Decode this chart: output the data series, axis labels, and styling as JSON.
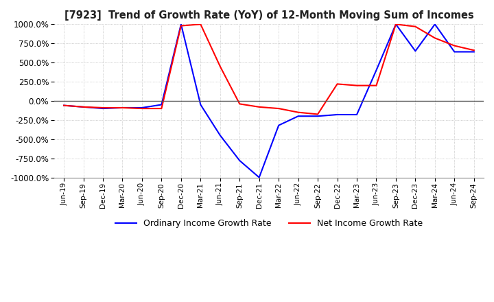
{
  "title": "[7923]  Trend of Growth Rate (YoY) of 12-Month Moving Sum of Incomes",
  "ylim": [
    -1000,
    1000
  ],
  "yticks": [
    -1000,
    -750,
    -500,
    -250,
    0,
    250,
    500,
    750,
    1000
  ],
  "ytick_labels": [
    "-1000.0%",
    "-750.0%",
    "-500.0%",
    "-250.0%",
    "0.0%",
    "250.0%",
    "500.0%",
    "750.0%",
    "1000.0%"
  ],
  "ordinary_color": "#0000FF",
  "net_color": "#FF0000",
  "background_color": "#FFFFFF",
  "grid_color": "#AAAAAA",
  "legend_labels": [
    "Ordinary Income Growth Rate",
    "Net Income Growth Rate"
  ],
  "x_labels": [
    "Jun-19",
    "Sep-19",
    "Dec-19",
    "Mar-20",
    "Jun-20",
    "Sep-20",
    "Dec-20",
    "Mar-21",
    "Jun-21",
    "Sep-21",
    "Dec-21",
    "Mar-22",
    "Jun-22",
    "Sep-22",
    "Dec-22",
    "Mar-23",
    "Jun-23",
    "Sep-23",
    "Dec-23",
    "Mar-24",
    "Jun-24",
    "Sep-24"
  ],
  "ordinary_values": [
    -60,
    -80,
    -100,
    -90,
    -90,
    -50,
    1000,
    -50,
    -450,
    -780,
    -1000,
    -320,
    -200,
    -200,
    -180,
    -180,
    400,
    1000,
    650,
    1000,
    640,
    640
  ],
  "net_values": [
    -60,
    -80,
    -90,
    -90,
    -100,
    -100,
    980,
    1000,
    450,
    -40,
    -80,
    -100,
    -150,
    -175,
    220,
    200,
    200,
    1000,
    970,
    820,
    720,
    660
  ]
}
